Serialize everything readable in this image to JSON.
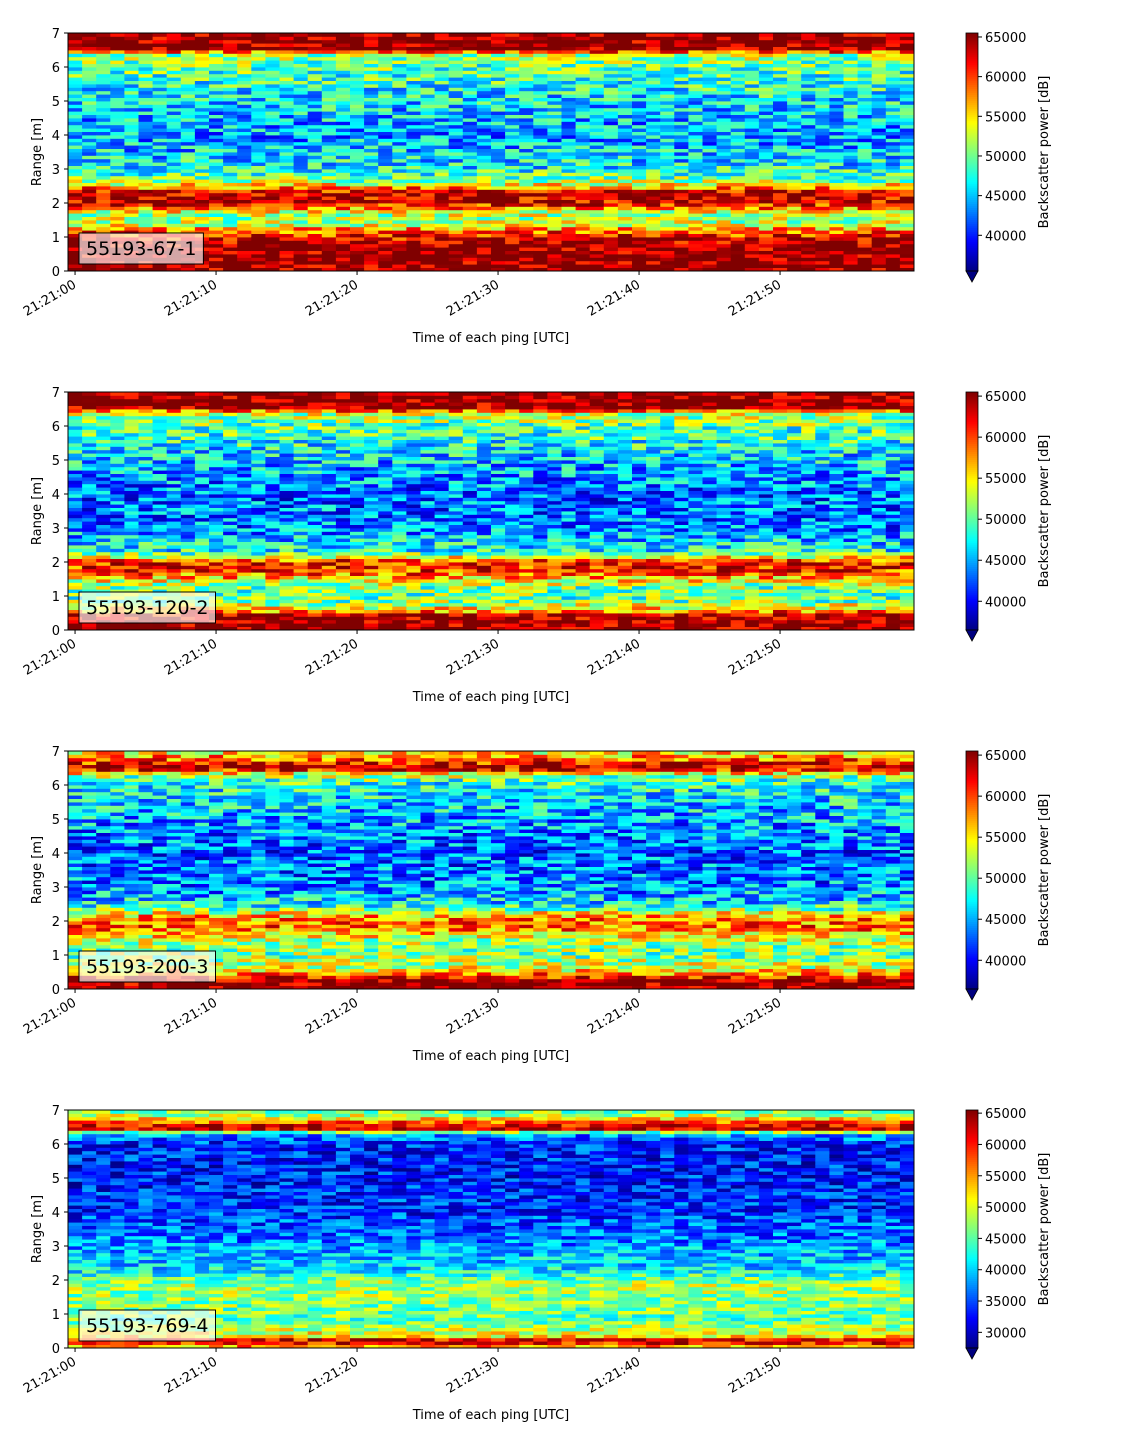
{
  "figure": {
    "colormap": "jet",
    "background": "#ffffff"
  },
  "chart_data": [
    {
      "type": "heatmap",
      "label": "55193-67-1",
      "xlabel": "Time of each ping [UTC]",
      "ylabel": "Range [m]",
      "x_tick_labels": [
        "21:21:00",
        "21:21:10",
        "21:21:20",
        "21:21:30",
        "21:21:40",
        "21:21:50"
      ],
      "xlim": [
        "21:20:59.5",
        "21:21:59.5"
      ],
      "ylim": [
        0,
        7
      ],
      "y_ticks": [
        0,
        1,
        2,
        3,
        4,
        5,
        6,
        7
      ],
      "colorbar": {
        "label": "Backscatter power [dB]",
        "vmin": 35500,
        "vmax": 65500,
        "ticks": [
          40000,
          45000,
          50000,
          55000,
          60000,
          65000
        ],
        "extend": "min"
      },
      "profile": [
        {
          "range": 0.25,
          "value": 65500
        },
        {
          "range": 0.5,
          "value": 65500
        },
        {
          "range": 0.8,
          "value": 65000
        },
        {
          "range": 1.0,
          "value": 62000
        },
        {
          "range": 1.2,
          "value": 58000
        },
        {
          "range": 1.4,
          "value": 52000
        },
        {
          "range": 1.7,
          "value": 52000
        },
        {
          "range": 2.0,
          "value": 63000
        },
        {
          "range": 2.3,
          "value": 64000
        },
        {
          "range": 2.6,
          "value": 52000
        },
        {
          "range": 3.0,
          "value": 47000
        },
        {
          "range": 4.0,
          "value": 44000
        },
        {
          "range": 5.0,
          "value": 46000
        },
        {
          "range": 6.0,
          "value": 49500
        },
        {
          "range": 6.4,
          "value": 52000
        },
        {
          "range": 6.5,
          "value": 65500
        },
        {
          "range": 7.0,
          "value": 65500
        }
      ]
    },
    {
      "type": "heatmap",
      "label": "55193-120-2",
      "xlabel": "Time of each ping [UTC]",
      "ylabel": "Range [m]",
      "x_tick_labels": [
        "21:21:00",
        "21:21:10",
        "21:21:20",
        "21:21:30",
        "21:21:40",
        "21:21:50"
      ],
      "xlim": [
        "21:20:59.5",
        "21:21:59.5"
      ],
      "ylim": [
        0,
        7
      ],
      "y_ticks": [
        0,
        1,
        2,
        3,
        4,
        5,
        6,
        7
      ],
      "colorbar": {
        "label": "Backscatter power [dB]",
        "vmin": 36500,
        "vmax": 65500,
        "ticks": [
          40000,
          45000,
          50000,
          55000,
          60000,
          65000
        ],
        "extend": "min"
      },
      "profile": [
        {
          "range": 0.25,
          "value": 65500
        },
        {
          "range": 0.45,
          "value": 64000
        },
        {
          "range": 0.6,
          "value": 56000
        },
        {
          "range": 0.9,
          "value": 50000
        },
        {
          "range": 1.3,
          "value": 51000
        },
        {
          "range": 1.7,
          "value": 60000
        },
        {
          "range": 2.0,
          "value": 62000
        },
        {
          "range": 2.3,
          "value": 48000
        },
        {
          "range": 3.0,
          "value": 44000
        },
        {
          "range": 4.0,
          "value": 43000
        },
        {
          "range": 5.0,
          "value": 46000
        },
        {
          "range": 6.0,
          "value": 50000
        },
        {
          "range": 6.4,
          "value": 53000
        },
        {
          "range": 6.5,
          "value": 65500
        },
        {
          "range": 7.0,
          "value": 65500
        }
      ]
    },
    {
      "type": "heatmap",
      "label": "55193-200-3",
      "xlabel": "Time of each ping [UTC]",
      "ylabel": "Range [m]",
      "x_tick_labels": [
        "21:21:00",
        "21:21:10",
        "21:21:20",
        "21:21:30",
        "21:21:40",
        "21:21:50"
      ],
      "xlim": [
        "21:20:59.5",
        "21:21:59.5"
      ],
      "ylim": [
        0,
        7
      ],
      "y_ticks": [
        0,
        1,
        2,
        3,
        4,
        5,
        6,
        7
      ],
      "colorbar": {
        "label": "Backscatter power [dB]",
        "vmin": 36500,
        "vmax": 65500,
        "ticks": [
          40000,
          45000,
          50000,
          55000,
          60000,
          65000
        ],
        "extend": "min"
      },
      "profile": [
        {
          "range": 0.25,
          "value": 65500
        },
        {
          "range": 0.4,
          "value": 60000
        },
        {
          "range": 0.6,
          "value": 54000
        },
        {
          "range": 1.0,
          "value": 51000
        },
        {
          "range": 1.4,
          "value": 52000
        },
        {
          "range": 1.8,
          "value": 59000
        },
        {
          "range": 2.1,
          "value": 58000
        },
        {
          "range": 2.5,
          "value": 47000
        },
        {
          "range": 3.0,
          "value": 44000
        },
        {
          "range": 4.0,
          "value": 43000
        },
        {
          "range": 5.0,
          "value": 45000
        },
        {
          "range": 6.0,
          "value": 48000
        },
        {
          "range": 6.3,
          "value": 52000
        },
        {
          "range": 6.5,
          "value": 64500
        },
        {
          "range": 6.8,
          "value": 58000
        },
        {
          "range": 7.0,
          "value": 55000
        }
      ]
    },
    {
      "type": "heatmap",
      "label": "55193-769-4",
      "xlabel": "Time of each ping [UTC]",
      "ylabel": "Range [m]",
      "x_tick_labels": [
        "21:21:00",
        "21:21:10",
        "21:21:20",
        "21:21:30",
        "21:21:40",
        "21:21:50"
      ],
      "xlim": [
        "21:20:59.5",
        "21:21:59.5"
      ],
      "ylim": [
        0,
        7
      ],
      "y_ticks": [
        0,
        1,
        2,
        3,
        4,
        5,
        6,
        7
      ],
      "colorbar": {
        "label": "Backscatter power [dB]",
        "vmin": 27500,
        "vmax": 65500,
        "ticks": [
          30000,
          35000,
          40000,
          45000,
          50000,
          55000,
          60000,
          65000
        ],
        "extend": "min"
      },
      "profile": [
        {
          "range": 0.1,
          "value": 55000
        },
        {
          "range": 0.2,
          "value": 65500
        },
        {
          "range": 0.35,
          "value": 52000
        },
        {
          "range": 0.8,
          "value": 45000
        },
        {
          "range": 1.4,
          "value": 47000
        },
        {
          "range": 1.9,
          "value": 48000
        },
        {
          "range": 2.3,
          "value": 41000
        },
        {
          "range": 3.0,
          "value": 38000
        },
        {
          "range": 4.0,
          "value": 34000
        },
        {
          "range": 5.0,
          "value": 33000
        },
        {
          "range": 6.0,
          "value": 33500
        },
        {
          "range": 6.3,
          "value": 38000
        },
        {
          "range": 6.45,
          "value": 63000
        },
        {
          "range": 6.6,
          "value": 60000
        },
        {
          "range": 6.8,
          "value": 50000
        },
        {
          "range": 7.0,
          "value": 45000
        }
      ]
    }
  ]
}
